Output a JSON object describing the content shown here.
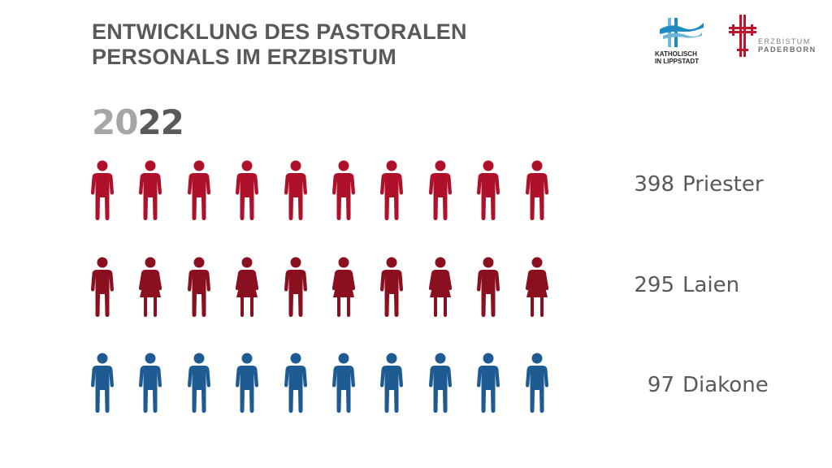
{
  "title": {
    "line1": "ENTWICKLUNG DES PASTORALEN",
    "line2": "PERSONALS IM ERZBISTUM"
  },
  "year": {
    "part1": "20",
    "part2": "22"
  },
  "logos": {
    "lippstadt": {
      "line1": "KATHOLISCH",
      "line2": "IN LIPPSTADT",
      "colors": {
        "wave": "#1f8bc2",
        "wave_light": "#6fb7da"
      }
    },
    "paderborn": {
      "line1": "ERZBISTUM",
      "line2": "PADERBORN",
      "colors": {
        "cross": "#c0142d"
      }
    }
  },
  "rows": [
    {
      "key": "priester",
      "count": "398",
      "label": "Priester",
      "color": "#b0112a",
      "figures": [
        "man",
        "man",
        "man",
        "man",
        "man",
        "man",
        "man",
        "man",
        "man",
        "man"
      ]
    },
    {
      "key": "laien",
      "count": "295",
      "label": "Laien",
      "color": "#8a1020",
      "figures": [
        "man",
        "woman",
        "man",
        "woman",
        "man",
        "woman",
        "man",
        "woman",
        "man",
        "woman"
      ]
    },
    {
      "key": "diakone",
      "count": "97",
      "label": "Diakone",
      "color": "#1f5b93",
      "figures": [
        "man",
        "man",
        "man",
        "man",
        "man",
        "man",
        "man",
        "man",
        "man",
        "man"
      ]
    }
  ]
}
